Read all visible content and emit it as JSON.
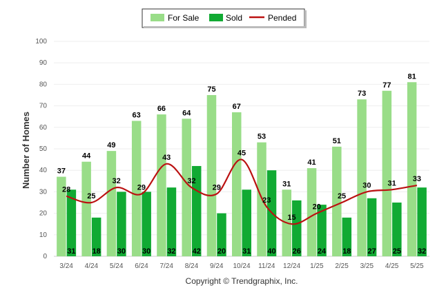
{
  "chart_data": {
    "type": "bar",
    "categories": [
      "3/24",
      "4/24",
      "5/24",
      "6/24",
      "7/24",
      "8/24",
      "9/24",
      "10/24",
      "11/24",
      "12/24",
      "1/25",
      "2/25",
      "3/25",
      "4/25",
      "5/25"
    ],
    "series": [
      {
        "name": "For Sale",
        "type": "bar",
        "color": "#99dd88",
        "values": [
          37,
          44,
          49,
          63,
          66,
          64,
          75,
          67,
          53,
          31,
          41,
          51,
          73,
          77,
          81
        ]
      },
      {
        "name": "Sold",
        "type": "bar",
        "color": "#11aa33",
        "values": [
          31,
          18,
          30,
          30,
          32,
          42,
          20,
          31,
          40,
          26,
          24,
          18,
          27,
          25,
          32
        ]
      },
      {
        "name": "Pended",
        "type": "line",
        "color": "#bb1111",
        "values": [
          28,
          25,
          32,
          29,
          43,
          32,
          29,
          45,
          23,
          15,
          20,
          25,
          30,
          31,
          33
        ]
      }
    ],
    "ylabel": "Number of Homes",
    "xlabel": "",
    "ylim": [
      0,
      100
    ],
    "yticks": [
      0,
      10,
      20,
      30,
      40,
      50,
      60,
      70,
      80,
      90,
      100
    ],
    "grid": true,
    "legend_position": "top-center"
  },
  "footer": "Copyright © Trendgraphix, Inc."
}
